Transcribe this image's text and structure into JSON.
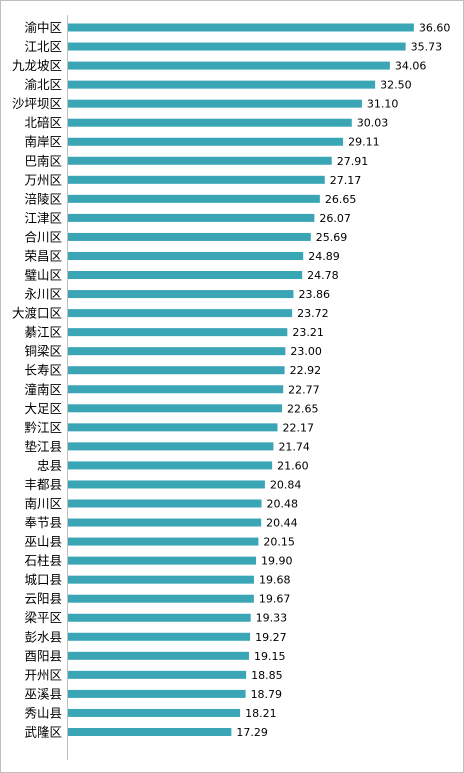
{
  "chart_data": {
    "type": "bar",
    "orientation": "horizontal",
    "title": "",
    "xlabel": "",
    "ylabel": "",
    "xlim": [
      0,
      40
    ],
    "grid": false,
    "legend": "none",
    "bar_color": "#3aa5b5",
    "categories": [
      "渝中区",
      "江北区",
      "九龙坡区",
      "渝北区",
      "沙坪坝区",
      "北碚区",
      "南岸区",
      "巴南区",
      "万州区",
      "涪陵区",
      "江津区",
      "合川区",
      "荣昌区",
      "璧山区",
      "永川区",
      "大渡口区",
      "綦江区",
      "铜梁区",
      "长寿区",
      "潼南区",
      "大足区",
      "黔江区",
      "垫江县",
      "忠县",
      "丰都县",
      "南川区",
      "奉节县",
      "巫山县",
      "石柱县",
      "城口县",
      "云阳县",
      "梁平区",
      "彭水县",
      "酉阳县",
      "开州区",
      "巫溪县",
      "秀山县",
      "武隆区"
    ],
    "values": [
      36.6,
      35.73,
      34.06,
      32.5,
      31.1,
      30.03,
      29.11,
      27.91,
      27.17,
      26.65,
      26.07,
      25.69,
      24.89,
      24.78,
      23.86,
      23.72,
      23.21,
      23.0,
      22.92,
      22.77,
      22.65,
      22.17,
      21.74,
      21.6,
      20.84,
      20.48,
      20.44,
      20.15,
      19.9,
      19.68,
      19.67,
      19.33,
      19.27,
      19.15,
      18.85,
      18.79,
      18.21,
      17.29
    ],
    "value_labels": [
      "36.60",
      "35.73",
      "34.06",
      "32.50",
      "31.10",
      "30.03",
      "29.11",
      "27.91",
      "27.17",
      "26.65",
      "26.07",
      "25.69",
      "24.89",
      "24.78",
      "23.86",
      "23.72",
      "23.21",
      "23.00",
      "22.92",
      "22.77",
      "22.65",
      "22.17",
      "21.74",
      "21.60",
      "20.84",
      "20.48",
      "20.44",
      "20.15",
      "19.90",
      "19.68",
      "19.67",
      "19.33",
      "19.27",
      "19.15",
      "18.85",
      "18.79",
      "18.21",
      "17.29"
    ]
  }
}
